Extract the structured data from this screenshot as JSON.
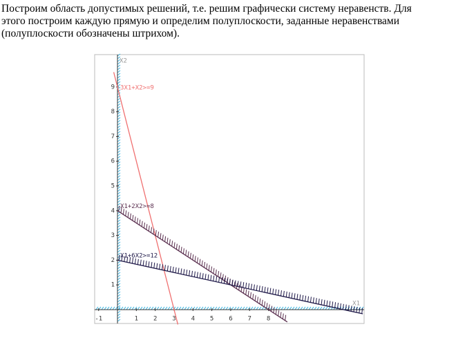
{
  "paragraph": {
    "lines": [
      "Построим область допустимых решений, т.е. решим графически систему неравенств. Для",
      "этого построим каждую прямую и определим полуплоскости, заданные неравенствами",
      "(полуплоскости обозначены штрихом)."
    ]
  },
  "chart_data": {
    "type": "line",
    "x_label": "X1",
    "y_label": "X2",
    "xlim": [
      -1.21,
      13.07
    ],
    "ylim": [
      -0.56,
      10.31
    ],
    "xticks": [
      -1,
      1,
      2,
      3,
      4,
      5,
      6,
      7,
      8
    ],
    "yticks": [
      1,
      2,
      3,
      4,
      5,
      6,
      7,
      8,
      9
    ],
    "series": [
      {
        "name": "3X1+X2>=9",
        "color": "#f07070",
        "hatched": false,
        "x": [
          -0.2,
          3.2
        ],
        "values": [
          9.6,
          -0.6
        ]
      },
      {
        "name": "X1+2X2>=8",
        "color": "#5a2f4f",
        "hatched": true,
        "x": [
          0,
          9
        ],
        "values": [
          4,
          -0.5
        ]
      },
      {
        "name": "X1+6X2>=12",
        "color": "#1e1848",
        "hatched": true,
        "x": [
          0,
          13
        ],
        "values": [
          2,
          -0.17
        ]
      }
    ]
  }
}
